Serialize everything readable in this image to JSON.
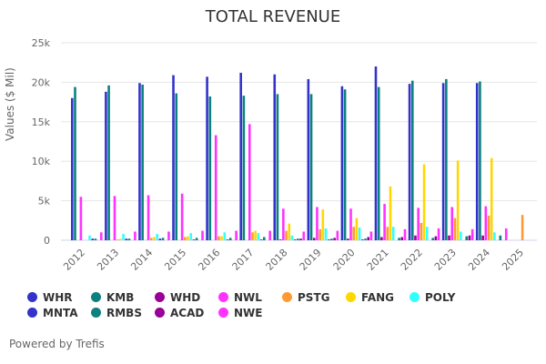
{
  "chart_data": {
    "type": "bar",
    "title": "TOTAL REVENUE",
    "ylabel": "Values ($ Mil)",
    "xlabel": "",
    "ylim": [
      0,
      25000
    ],
    "yticks": [
      "0",
      "5k",
      "10k",
      "15k",
      "20k",
      "25k"
    ],
    "grid": true,
    "legend_position": "bottom",
    "categories": [
      "2012",
      "2013",
      "2014",
      "2015",
      "2016",
      "2017",
      "2018",
      "2019",
      "2020",
      "2021",
      "2022",
      "2023",
      "2024",
      "2025"
    ],
    "series": [
      {
        "name": "WHR",
        "color": "#3333cc",
        "values": [
          18000,
          18800,
          19900,
          20900,
          20700,
          21200,
          21000,
          20400,
          19500,
          22000,
          19800,
          19900,
          19900,
          null
        ]
      },
      {
        "name": "KMB",
        "color": "#0d8080",
        "values": [
          19400,
          19600,
          19700,
          18600,
          18200,
          18300,
          18500,
          18500,
          19100,
          19400,
          20200,
          20400,
          20100,
          null
        ]
      },
      {
        "name": "WHD",
        "color": "#990099",
        "values": [
          null,
          null,
          null,
          null,
          null,
          null,
          100,
          300,
          200,
          400,
          600,
          600,
          600,
          null
        ]
      },
      {
        "name": "NWL",
        "color": "#ff33ff",
        "values": [
          5500,
          5600,
          5700,
          5900,
          13300,
          14700,
          4000,
          4200,
          4000,
          4600,
          4100,
          4200,
          4300,
          null
        ]
      },
      {
        "name": "PSTG",
        "color": "#ff9933",
        "values": [
          null,
          100,
          300,
          400,
          500,
          1000,
          1200,
          1400,
          1700,
          1700,
          2200,
          2800,
          3100,
          3200
        ]
      },
      {
        "name": "FANG",
        "color": "#ffd700",
        "values": [
          null,
          200,
          400,
          500,
          500,
          1200,
          2100,
          3900,
          2800,
          6800,
          9600,
          10100,
          10400,
          null
        ]
      },
      {
        "name": "POLY",
        "color": "#33ffff",
        "values": [
          600,
          800,
          800,
          900,
          1000,
          900,
          600,
          1500,
          1600,
          1700,
          1700,
          1100,
          1000,
          null
        ]
      },
      {
        "name": "MNTA",
        "color": "#3333cc",
        "values": [
          200,
          200,
          200,
          100,
          100,
          100,
          100,
          100,
          100,
          null,
          null,
          null,
          null,
          null
        ]
      },
      {
        "name": "RMBS",
        "color": "#0d8080",
        "values": [
          200,
          200,
          300,
          300,
          300,
          400,
          200,
          200,
          200,
          300,
          300,
          500,
          600,
          null
        ]
      },
      {
        "name": "ACAD",
        "color": "#990099",
        "values": [
          null,
          null,
          null,
          null,
          null,
          null,
          200,
          300,
          400,
          400,
          500,
          600,
          null,
          null
        ]
      },
      {
        "name": "NWE",
        "color": "#ff33ff",
        "values": [
          1000,
          1100,
          1100,
          1200,
          1200,
          1200,
          1100,
          1200,
          1100,
          1400,
          1500,
          1400,
          1500,
          null
        ]
      }
    ]
  },
  "legend": {
    "items": [
      {
        "label": "WHR",
        "color": "#3333cc"
      },
      {
        "label": "KMB",
        "color": "#0d8080"
      },
      {
        "label": "WHD",
        "color": "#990099"
      },
      {
        "label": "NWL",
        "color": "#ff33ff"
      },
      {
        "label": "PSTG",
        "color": "#ff9933"
      },
      {
        "label": "FANG",
        "color": "#ffd700"
      },
      {
        "label": "POLY",
        "color": "#33ffff"
      },
      {
        "label": "MNTA",
        "color": "#3333cc"
      },
      {
        "label": "RMBS",
        "color": "#0d8080"
      },
      {
        "label": "ACAD",
        "color": "#990099"
      },
      {
        "label": "NWE",
        "color": "#ff33ff"
      }
    ]
  },
  "credit": "Powered by Trefis"
}
